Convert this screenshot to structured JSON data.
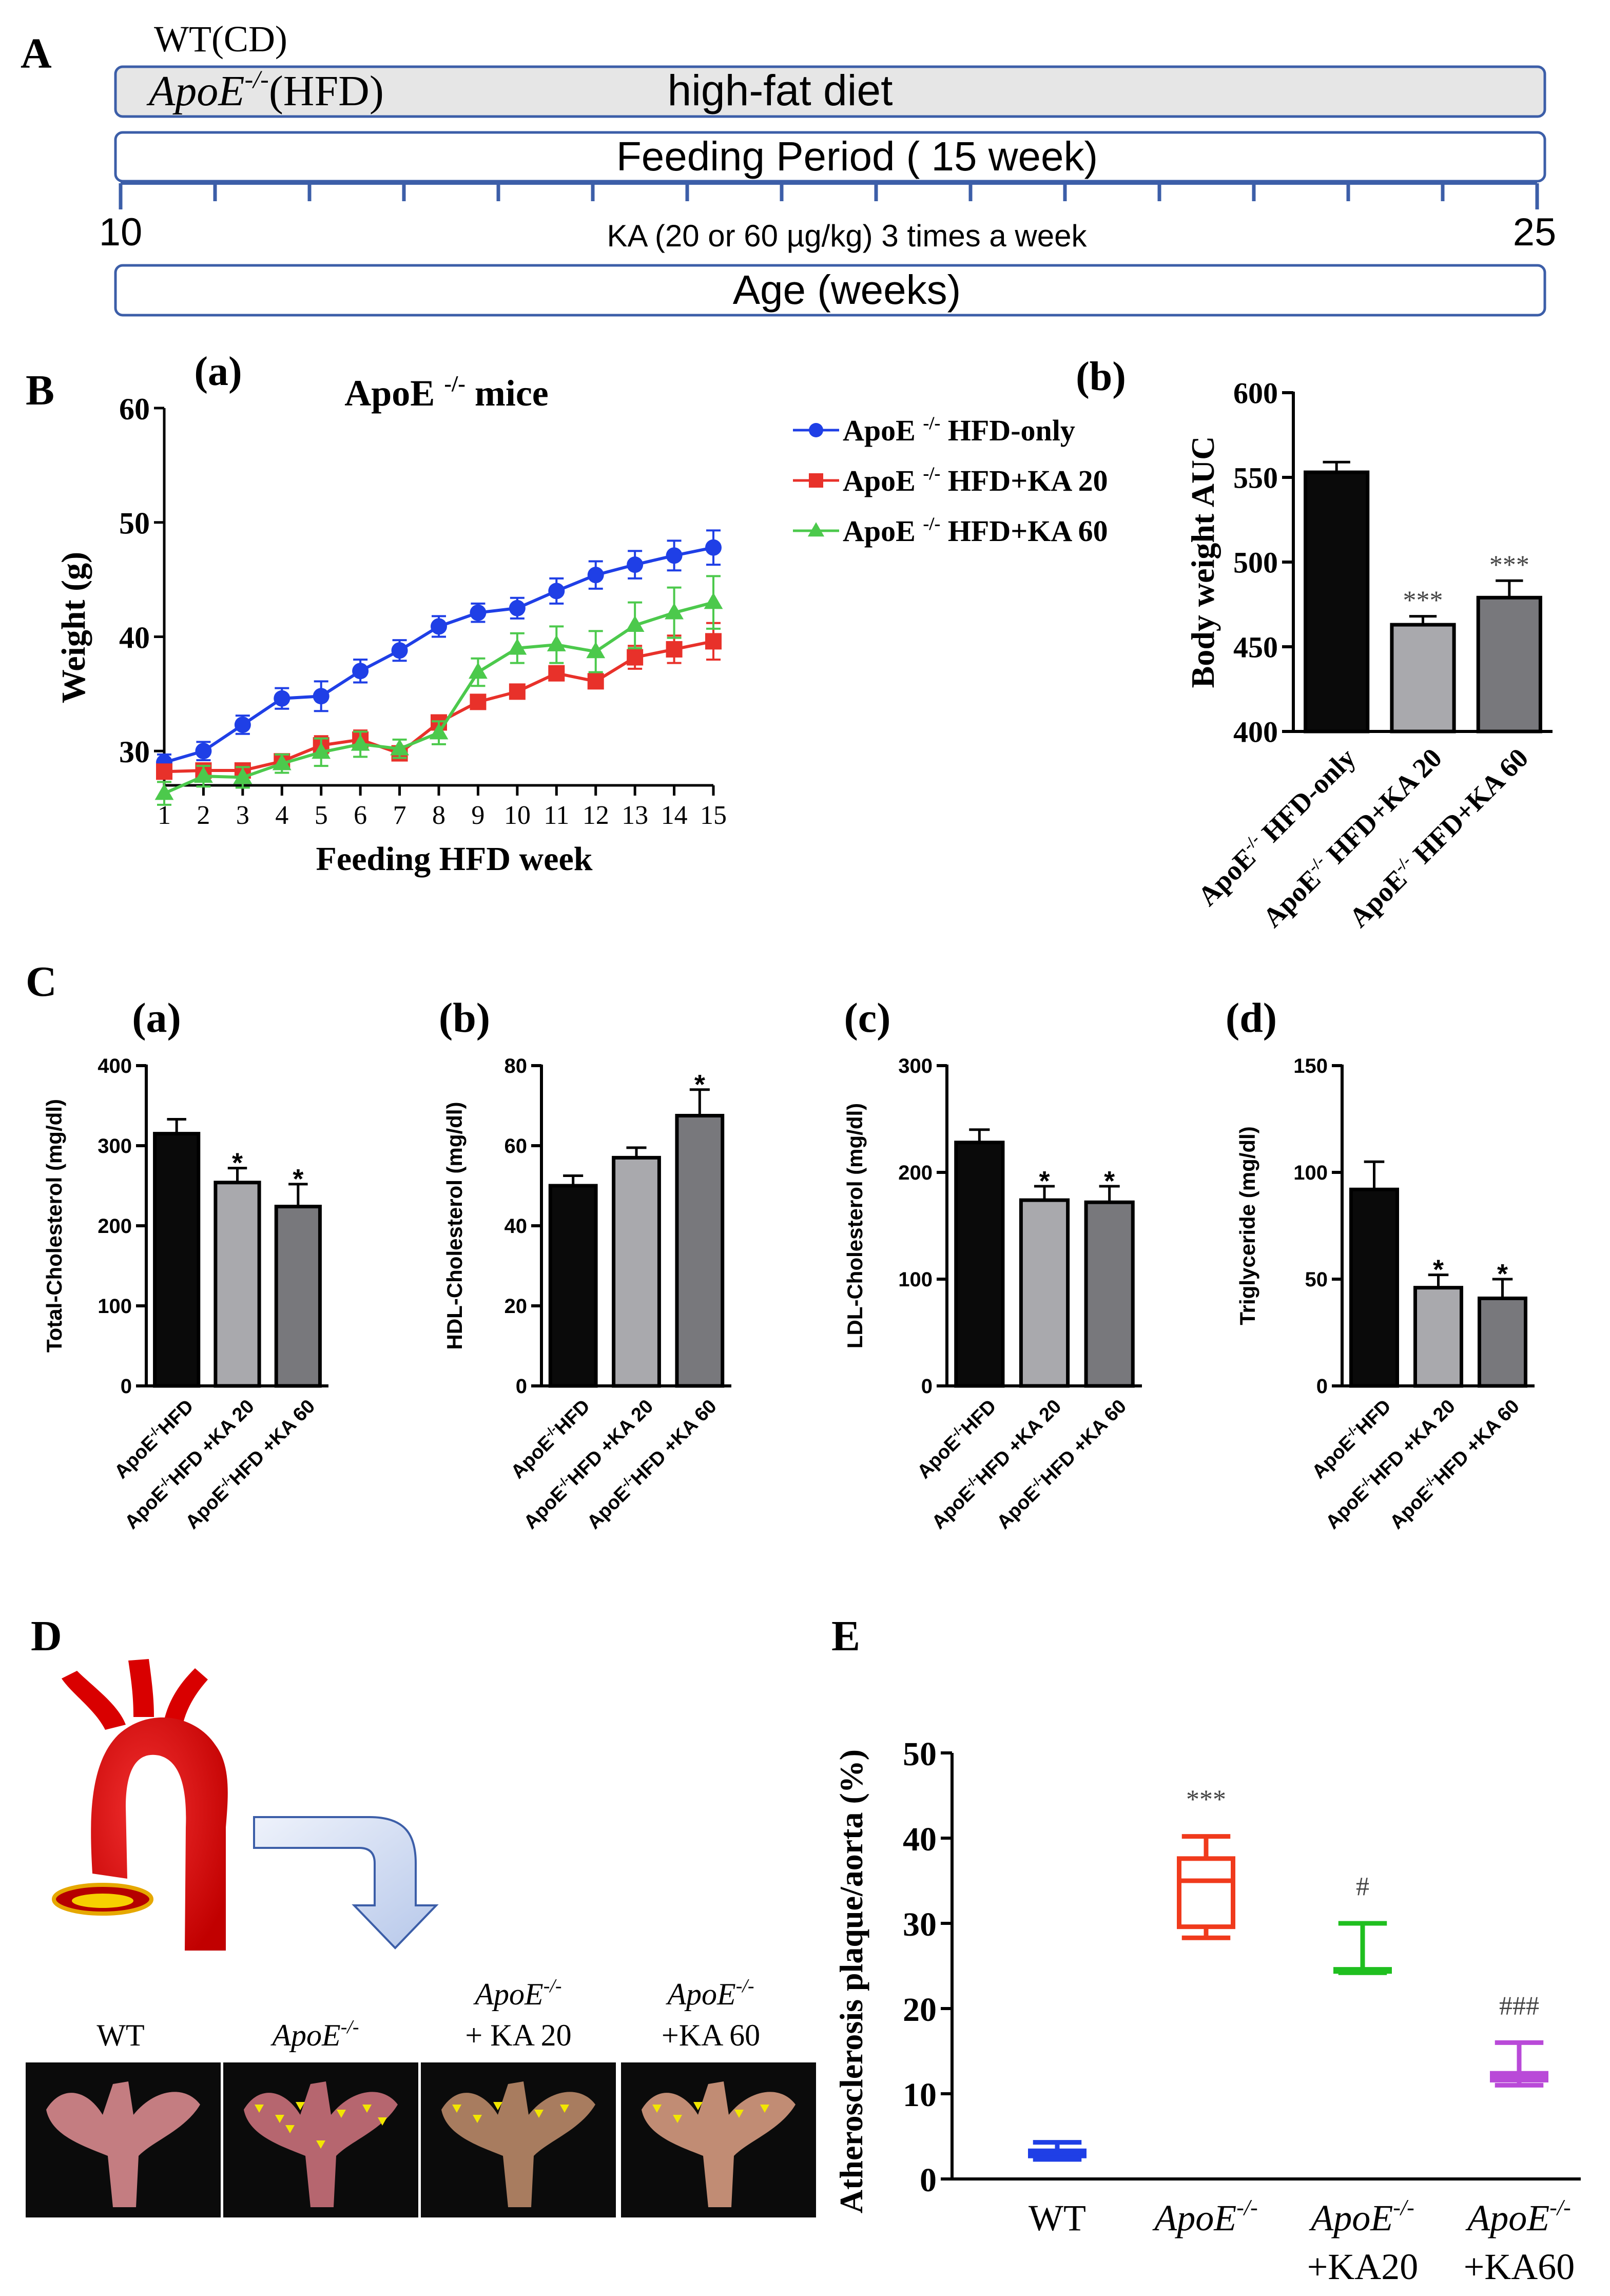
{
  "timeline": {
    "panel_label": "A",
    "wt_label": "WT(CD)",
    "apoe_label": "ApoE",
    "apoe_sup": "-/-",
    "apoe_suffix": "(HFD)",
    "diet_label": "high-fat diet",
    "feeding_label": "Feeding Period ( 15 week)",
    "start_age": "10",
    "end_age": "25",
    "treatment_label": "KA (20 or 60 µg/kg) 3 times a week",
    "age_label": "Age (weeks)",
    "tick_count": 16
  },
  "panel_B_label": "B",
  "panel_C_label": "C",
  "panel_D_label": "D",
  "panel_E_label": "E",
  "colors": {
    "hfd": "#1f3fe6",
    "ka20": "#e8312a",
    "ka60": "#4cc94c",
    "bar_hfd": "#0a0a0a",
    "bar_ka20": "#a9a9ad",
    "bar_ka60": "#78787c",
    "box_wt": "#1f3fe6",
    "box_apoe": "#f03a1c",
    "box_ka20": "#1fbf1f",
    "box_ka60": "#b94ad8",
    "timeline_stroke": "#3c5ea8",
    "timeline_fill": "#e6e6e6"
  },
  "chart_data": [
    {
      "id": "B-a",
      "type": "line",
      "subpanel": "(a)",
      "title_main": "ApoE",
      "title_sup": "-/-",
      "title_suffix": "mice",
      "xlabel": "Feeding HFD week",
      "ylabel": "Weight (g)",
      "xlim": [
        1,
        15
      ],
      "ylim": [
        27,
        60
      ],
      "x_ticks": [
        "1",
        "2",
        "3",
        "4",
        "5",
        "6",
        "7",
        "8",
        "9",
        "10",
        "11",
        "12",
        "13",
        "14",
        "15"
      ],
      "y_ticks": [
        "30",
        "40",
        "50",
        "60"
      ],
      "legend_position": "top-right",
      "series": [
        {
          "name_main": "ApoE",
          "name_sup": "-/-",
          "name_suffix": "HFD-only",
          "marker": "circle",
          "color": "#1f3fe6",
          "values": [
            29.0,
            30.0,
            32.3,
            34.6,
            34.8,
            37.0,
            38.8,
            40.9,
            42.1,
            42.5,
            44.0,
            45.4,
            46.3,
            47.1,
            47.8
          ],
          "errors": [
            0.7,
            0.8,
            0.8,
            0.9,
            1.3,
            1.0,
            0.9,
            0.9,
            0.8,
            0.9,
            1.1,
            1.2,
            1.2,
            1.3,
            1.5
          ]
        },
        {
          "name_main": "ApoE",
          "name_sup": "-/-",
          "name_suffix": "HFD+KA 20",
          "marker": "square",
          "color": "#e8312a",
          "values": [
            28.2,
            28.3,
            28.3,
            29.1,
            30.5,
            31.0,
            29.8,
            32.5,
            34.3,
            35.2,
            36.8,
            36.1,
            38.2,
            38.9,
            39.6
          ],
          "errors": [
            0.6,
            0.6,
            0.6,
            0.6,
            0.8,
            0.8,
            0.5,
            0.5,
            0.6,
            0.5,
            0.6,
            0.6,
            1.0,
            1.2,
            1.6
          ]
        },
        {
          "name_main": "ApoE",
          "name_sup": "-/-",
          "name_suffix": "HFD+KA 60",
          "marker": "triangle",
          "color": "#4cc94c",
          "values": [
            26.3,
            27.8,
            27.7,
            28.9,
            29.9,
            30.6,
            30.2,
            31.6,
            36.9,
            39.0,
            39.3,
            38.7,
            41.0,
            42.1,
            43.0
          ],
          "errors": [
            1.0,
            0.9,
            0.9,
            0.8,
            1.2,
            1.1,
            0.8,
            1.0,
            1.2,
            1.3,
            1.6,
            1.8,
            2.0,
            2.2,
            2.3
          ]
        }
      ]
    },
    {
      "id": "B-b",
      "type": "bar",
      "subpanel": "(b)",
      "ylabel": "Body weight AUC",
      "ylim": [
        400,
        600
      ],
      "y_ticks": [
        "400",
        "450",
        "500",
        "550",
        "600"
      ],
      "categories": [
        {
          "main": "ApoE",
          "sup": "-/-",
          "suffix": "HFD-only"
        },
        {
          "main": "ApoE",
          "sup": "-/-",
          "suffix": "HFD+KA 20"
        },
        {
          "main": "ApoE",
          "sup": "-/-",
          "suffix": "HFD+KA 60"
        }
      ],
      "values": [
        553,
        463,
        479
      ],
      "errors": [
        6,
        5,
        10
      ],
      "significance": [
        "",
        "***",
        "***"
      ]
    },
    {
      "id": "C-a",
      "type": "bar",
      "subpanel": "(a)",
      "ylabel": "Total-Cholesterol (mg/dl)",
      "ylim": [
        0,
        400
      ],
      "y_ticks": [
        "0",
        "100",
        "200",
        "300",
        "400"
      ],
      "categories": [
        {
          "main": "ApoE",
          "sup": "-/-",
          "suffix": "HFD"
        },
        {
          "main": "ApoE",
          "sup": "-/-",
          "suffix": "HFD +KA 20"
        },
        {
          "main": "ApoE",
          "sup": "-/-",
          "suffix": "HFD +KA 60"
        }
      ],
      "values": [
        315,
        254,
        224
      ],
      "errors": [
        18,
        18,
        28
      ],
      "significance": [
        "",
        "*",
        "*"
      ]
    },
    {
      "id": "C-b",
      "type": "bar",
      "subpanel": "(b)",
      "ylabel": "HDL-Cholesterol (mg/dl)",
      "ylim": [
        0,
        80
      ],
      "y_ticks": [
        "0",
        "20",
        "40",
        "60",
        "80"
      ],
      "categories": [
        {
          "main": "ApoE",
          "sup": "-/-",
          "suffix": "HFD"
        },
        {
          "main": "ApoE",
          "sup": "-/-",
          "suffix": "HFD +KA 20"
        },
        {
          "main": "ApoE",
          "sup": "-/-",
          "suffix": "HFD +KA 60"
        }
      ],
      "values": [
        50,
        57,
        67.5
      ],
      "errors": [
        2.5,
        2.5,
        6.5
      ],
      "significance": [
        "",
        "",
        "*"
      ]
    },
    {
      "id": "C-c",
      "type": "bar",
      "subpanel": "(c)",
      "ylabel": "LDL-Cholesterol (mg/dl)",
      "ylim": [
        0,
        300
      ],
      "y_ticks": [
        "0",
        "100",
        "200",
        "300"
      ],
      "categories": [
        {
          "main": "ApoE",
          "sup": "-/-",
          "suffix": "HFD"
        },
        {
          "main": "ApoE",
          "sup": "-/-",
          "suffix": "HFD +KA 20"
        },
        {
          "main": "ApoE",
          "sup": "-/-",
          "suffix": "HFD +KA 60"
        }
      ],
      "values": [
        228,
        174,
        172
      ],
      "errors": [
        12,
        13,
        15
      ],
      "significance": [
        "",
        "*",
        "*"
      ]
    },
    {
      "id": "C-d",
      "type": "bar",
      "subpanel": "(d)",
      "ylabel": "Triglyceride (mg/dl)",
      "ylim": [
        0,
        150
      ],
      "y_ticks": [
        "0",
        "50",
        "100",
        "150"
      ],
      "categories": [
        {
          "main": "ApoE",
          "sup": "-/-",
          "suffix": "HFD"
        },
        {
          "main": "ApoE",
          "sup": "-/-",
          "suffix": "HFD +KA 20"
        },
        {
          "main": "ApoE",
          "sup": "-/-",
          "suffix": "HFD +KA 60"
        }
      ],
      "values": [
        92,
        46,
        41
      ],
      "errors": [
        13,
        6,
        9
      ],
      "significance": [
        "",
        "*",
        "*"
      ]
    },
    {
      "id": "E",
      "type": "box",
      "ylabel": "Atherosclerosis plaque/aorta (%)",
      "ylim": [
        0,
        50
      ],
      "y_ticks": [
        "0",
        "10",
        "20",
        "30",
        "40",
        "50"
      ],
      "groups": [
        {
          "line1": "WT",
          "line1_sup": "",
          "line2": "",
          "min": 2.3,
          "q1": 2.7,
          "median": 3.0,
          "q3": 3.3,
          "max": 4.3,
          "significance": "",
          "color": "#1f3fe6"
        },
        {
          "line1": "ApoE",
          "line1_sup": "-/-",
          "line2": "",
          "min": 28.3,
          "q1": 29.6,
          "median": 35.0,
          "q3": 37.6,
          "max": 40.2,
          "significance": "***",
          "color": "#f03a1c"
        },
        {
          "line1": "ApoE",
          "line1_sup": "-/-",
          "line2": "+KA20",
          "min": 24.2,
          "q1": 24.4,
          "median": 24.5,
          "q3": 24.6,
          "max": 30.0,
          "significance": "#",
          "color": "#1fbf1f"
        },
        {
          "line1": "ApoE",
          "line1_sup": "-/-",
          "line2": "+KA60",
          "min": 11.0,
          "q1": 11.6,
          "median": 12.0,
          "q3": 12.4,
          "max": 16.0,
          "significance": "###",
          "color": "#b94ad8"
        }
      ]
    }
  ],
  "panel_D": {
    "labels": [
      {
        "line1": "WT",
        "line1_sup": "",
        "line2": ""
      },
      {
        "line1": "ApoE",
        "line1_sup": "-/-",
        "line2": ""
      },
      {
        "line1": "ApoE",
        "line1_sup": "-/-",
        "line2": "+ KA 20"
      },
      {
        "line1": "ApoE",
        "line1_sup": "-/-",
        "line2": "+KA 60"
      }
    ]
  }
}
